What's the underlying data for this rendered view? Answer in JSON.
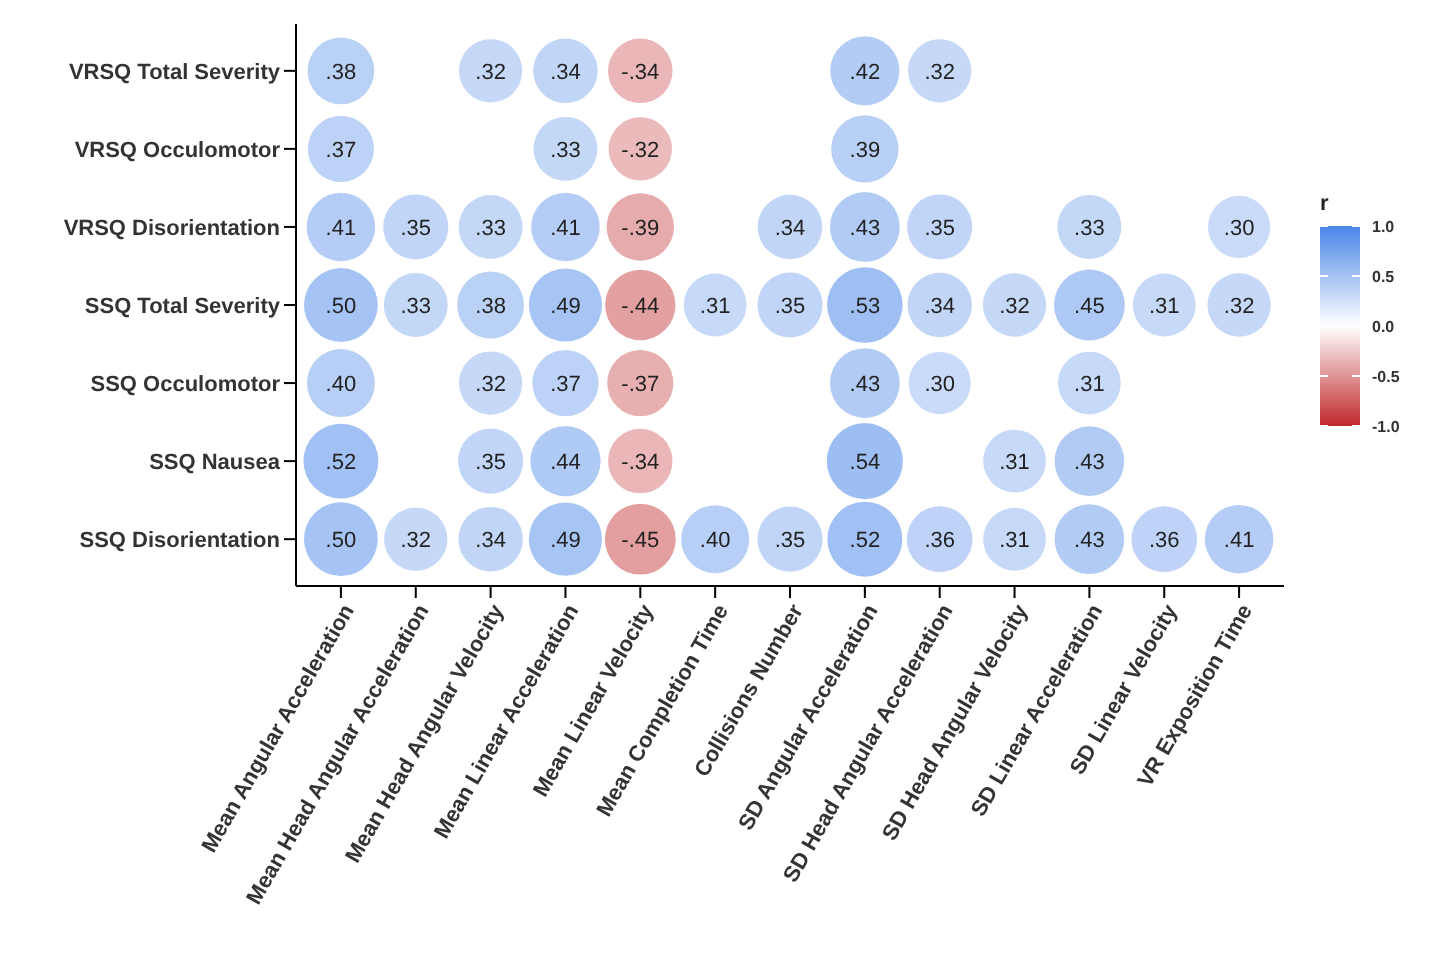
{
  "chart_data": {
    "type": "heatmap",
    "categories": [
      "Mean Angular Acceleration",
      "Mean Head Angular Acceleration",
      "Mean Head Angular Velocity",
      "Mean Linear Acceleration",
      "Mean Linear Velocity",
      "Mean Completion Time",
      "Collisions Number",
      "SD Angular Acceleration",
      "SD Head Angular Acceleration",
      "SD Head Angular Velocity",
      "SD Linear Acceleration",
      "SD Linear Velocity",
      "VR Exposition Time"
    ],
    "y_categories": [
      "VRSQ Total Severity",
      "VRSQ Occulomotor",
      "VRSQ Disorientation",
      "SSQ Total Severity",
      "SSQ Occulomotor",
      "SSQ Nausea",
      "SSQ Disorientation"
    ],
    "cells": [
      [
        0.38,
        null,
        0.32,
        0.34,
        -0.34,
        null,
        null,
        0.42,
        0.32,
        null,
        null,
        null,
        null
      ],
      [
        0.37,
        null,
        null,
        0.33,
        -0.32,
        null,
        null,
        0.39,
        null,
        null,
        null,
        null,
        null
      ],
      [
        0.41,
        0.35,
        0.33,
        0.41,
        -0.39,
        null,
        0.34,
        0.43,
        0.35,
        null,
        0.33,
        null,
        0.3
      ],
      [
        0.5,
        0.33,
        0.38,
        0.49,
        -0.44,
        0.31,
        0.35,
        0.53,
        0.34,
        0.32,
        0.45,
        0.31,
        0.32
      ],
      [
        0.4,
        null,
        0.32,
        0.37,
        -0.37,
        null,
        null,
        0.43,
        0.3,
        null,
        0.31,
        null,
        null
      ],
      [
        0.52,
        null,
        0.35,
        0.44,
        -0.34,
        null,
        null,
        0.54,
        null,
        0.31,
        0.43,
        null,
        null
      ],
      [
        0.5,
        0.32,
        0.34,
        0.49,
        -0.45,
        0.4,
        0.35,
        0.52,
        0.36,
        0.31,
        0.43,
        0.36,
        0.41
      ]
    ],
    "cell_labels": [
      [
        ".38",
        null,
        ".32",
        ".34",
        "-.34",
        null,
        null,
        ".42",
        ".32",
        null,
        null,
        null,
        null
      ],
      [
        ".37",
        null,
        null,
        ".33",
        "-.32",
        null,
        null,
        ".39",
        null,
        null,
        null,
        null,
        null
      ],
      [
        ".41",
        ".35",
        ".33",
        ".41",
        "-.39",
        null,
        ".34",
        ".43",
        ".35",
        null,
        ".33",
        null,
        ".30"
      ],
      [
        ".50",
        ".33",
        ".38",
        ".49",
        "-.44",
        ".31",
        ".35",
        ".53",
        ".34",
        ".32",
        ".45",
        ".31",
        ".32"
      ],
      [
        ".40",
        null,
        ".32",
        ".37",
        "-.37",
        null,
        null,
        ".43",
        ".30",
        null,
        ".31",
        null,
        null
      ],
      [
        ".52",
        null,
        ".35",
        ".44",
        "-.34",
        null,
        null,
        ".54",
        null,
        ".31",
        ".43",
        null,
        null
      ],
      [
        ".50",
        ".32",
        ".34",
        ".49",
        "-.45",
        ".40",
        ".35",
        ".52",
        ".36",
        ".31",
        ".43",
        ".36",
        ".41"
      ]
    ],
    "clabel": "r",
    "clim": [
      -1,
      1
    ],
    "cticks": [
      {
        "value": 1,
        "label": "1.0"
      },
      {
        "value": 0.5,
        "label": "0.5"
      },
      {
        "value": 0,
        "label": "0.0"
      },
      {
        "value": -0.5,
        "label": "-0.5"
      },
      {
        "value": -1,
        "label": "-1.0"
      }
    ]
  }
}
